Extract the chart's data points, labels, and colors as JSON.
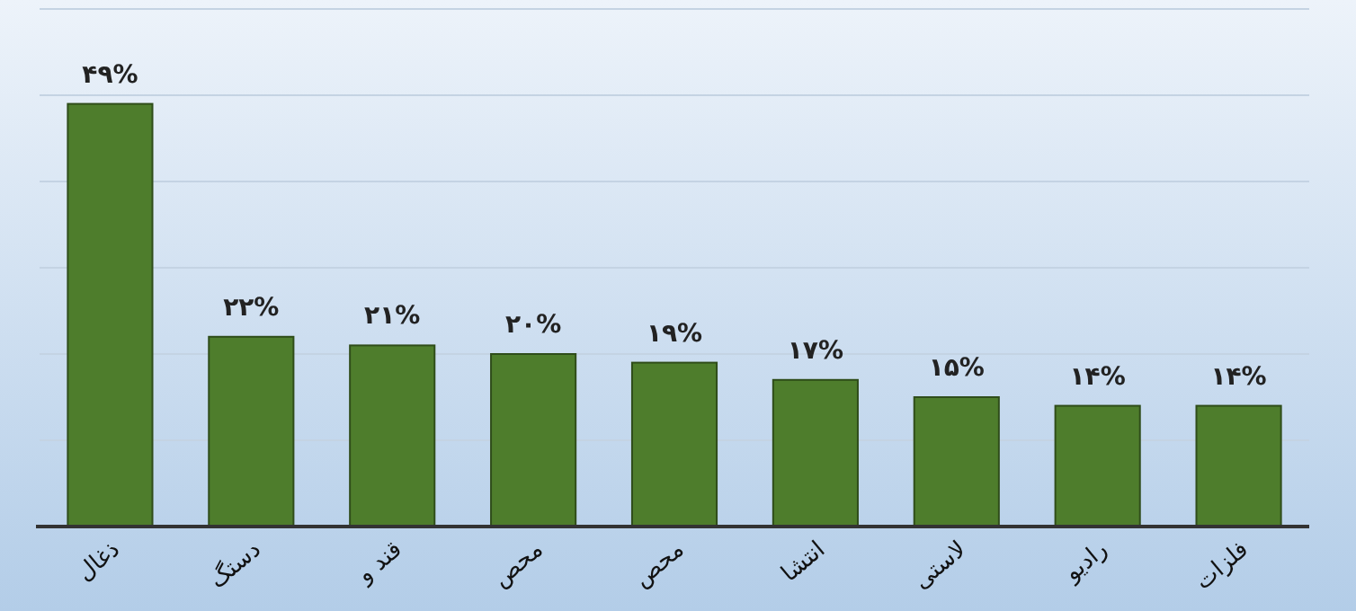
{
  "chart_data": {
    "type": "bar",
    "categories": [
      "ذغال",
      "دستگ",
      "قند و",
      "محص",
      "محص",
      "انتشا",
      "لاستی",
      "رادیو",
      "فلزات"
    ],
    "values": [
      49,
      22,
      21,
      20,
      19,
      17,
      15,
      14,
      14
    ],
    "value_labels": [
      "۴۹%",
      "۲۲%",
      "۲۱%",
      "۲۰%",
      "۱۹%",
      "۱۷%",
      "۱۵%",
      "۱۴%",
      "۱۴%"
    ],
    "color": "#4e7d2c",
    "ylim": [
      0,
      60
    ],
    "yticks": [
      {
        "value": 0,
        "label": null
      },
      {
        "value": 10,
        "label": null
      },
      {
        "value": 20,
        "label": null
      },
      {
        "value": 30,
        "label": null
      },
      {
        "value": 40,
        "label": null
      },
      {
        "value": 50,
        "label": null
      },
      {
        "value": 60,
        "label": null
      }
    ],
    "grid": "y",
    "tick_labels": "x"
  }
}
